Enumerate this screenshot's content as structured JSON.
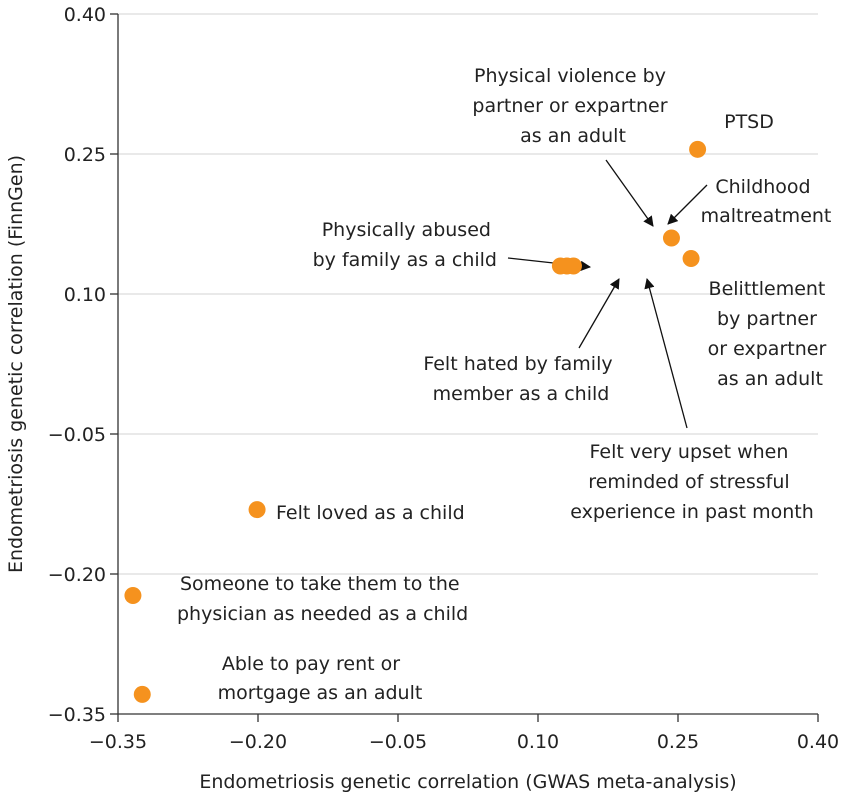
{
  "chart_data": {
    "type": "scatter",
    "title": "",
    "xlabel": "Endometriosis genetic correlation (GWAS meta-analysis)",
    "ylabel": "Endometriosis genetic correlation (FinnGen)",
    "xlim": [
      -0.35,
      0.4
    ],
    "ylim": [
      -0.35,
      0.4
    ],
    "xticks": [
      -0.35,
      -0.2,
      -0.05,
      0.1,
      0.25,
      0.4
    ],
    "yticks": [
      -0.35,
      -0.2,
      -0.05,
      0.1,
      0.25,
      0.4
    ],
    "xtick_labels": [
      "−0.35",
      "−0.20",
      "−0.05",
      "0.10",
      "0.25",
      "0.40"
    ],
    "ytick_labels": [
      "−0.35",
      "−0.20",
      "−0.05",
      "0.10",
      "0.25",
      "0.40"
    ],
    "grid": "horizontal",
    "point_color": "#f5921e",
    "points": [
      {
        "label": "PTSD",
        "x": 0.271,
        "y": 0.255
      },
      {
        "label": "Childhood maltreatment",
        "x": 0.243,
        "y": 0.16
      },
      {
        "label": "Physical violence by partner or expartner as an adult",
        "x": 0.243,
        "y": 0.16
      },
      {
        "label": "Belittlement by partner or expartner as an adult",
        "x": 0.264,
        "y": 0.138
      },
      {
        "label": "Physically abused by family as a child",
        "x": 0.124,
        "y": 0.13
      },
      {
        "label": "Felt hated by family member as a child",
        "x": 0.131,
        "y": 0.13
      },
      {
        "label": "Felt very upset when reminded of stressful experience in past month",
        "x": 0.138,
        "y": 0.13
      },
      {
        "label": "Felt loved as a child",
        "x": -0.201,
        "y": -0.131
      },
      {
        "label": "Someone to take them to the physician as needed as a child",
        "x": -0.334,
        "y": -0.223
      },
      {
        "label": "Able to pay rent or mortgage as an adult",
        "x": -0.324,
        "y": -0.329
      }
    ]
  },
  "annotations": {
    "ptsd": [
      "PTSD"
    ],
    "childhood_maltreatment": [
      "Childhood",
      "maltreatment"
    ],
    "physical_violence": [
      "Physical violence by",
      "partner or expartner",
      "as an adult"
    ],
    "belittlement": [
      "Belittlement",
      "by partner",
      "or expartner",
      "as an adult"
    ],
    "physically_abused": [
      "Physically abused",
      "by family as a child"
    ],
    "felt_hated": [
      "Felt hated by family",
      "member as a child"
    ],
    "felt_upset": [
      "Felt very upset when",
      "reminded of stressful",
      "experience in past month"
    ],
    "felt_loved": [
      "Felt loved as a child"
    ],
    "someone_physician": [
      "Someone to take them to the",
      "physician as needed as a child"
    ],
    "pay_rent": [
      "Able to pay rent or",
      "mortgage as an adult"
    ]
  }
}
